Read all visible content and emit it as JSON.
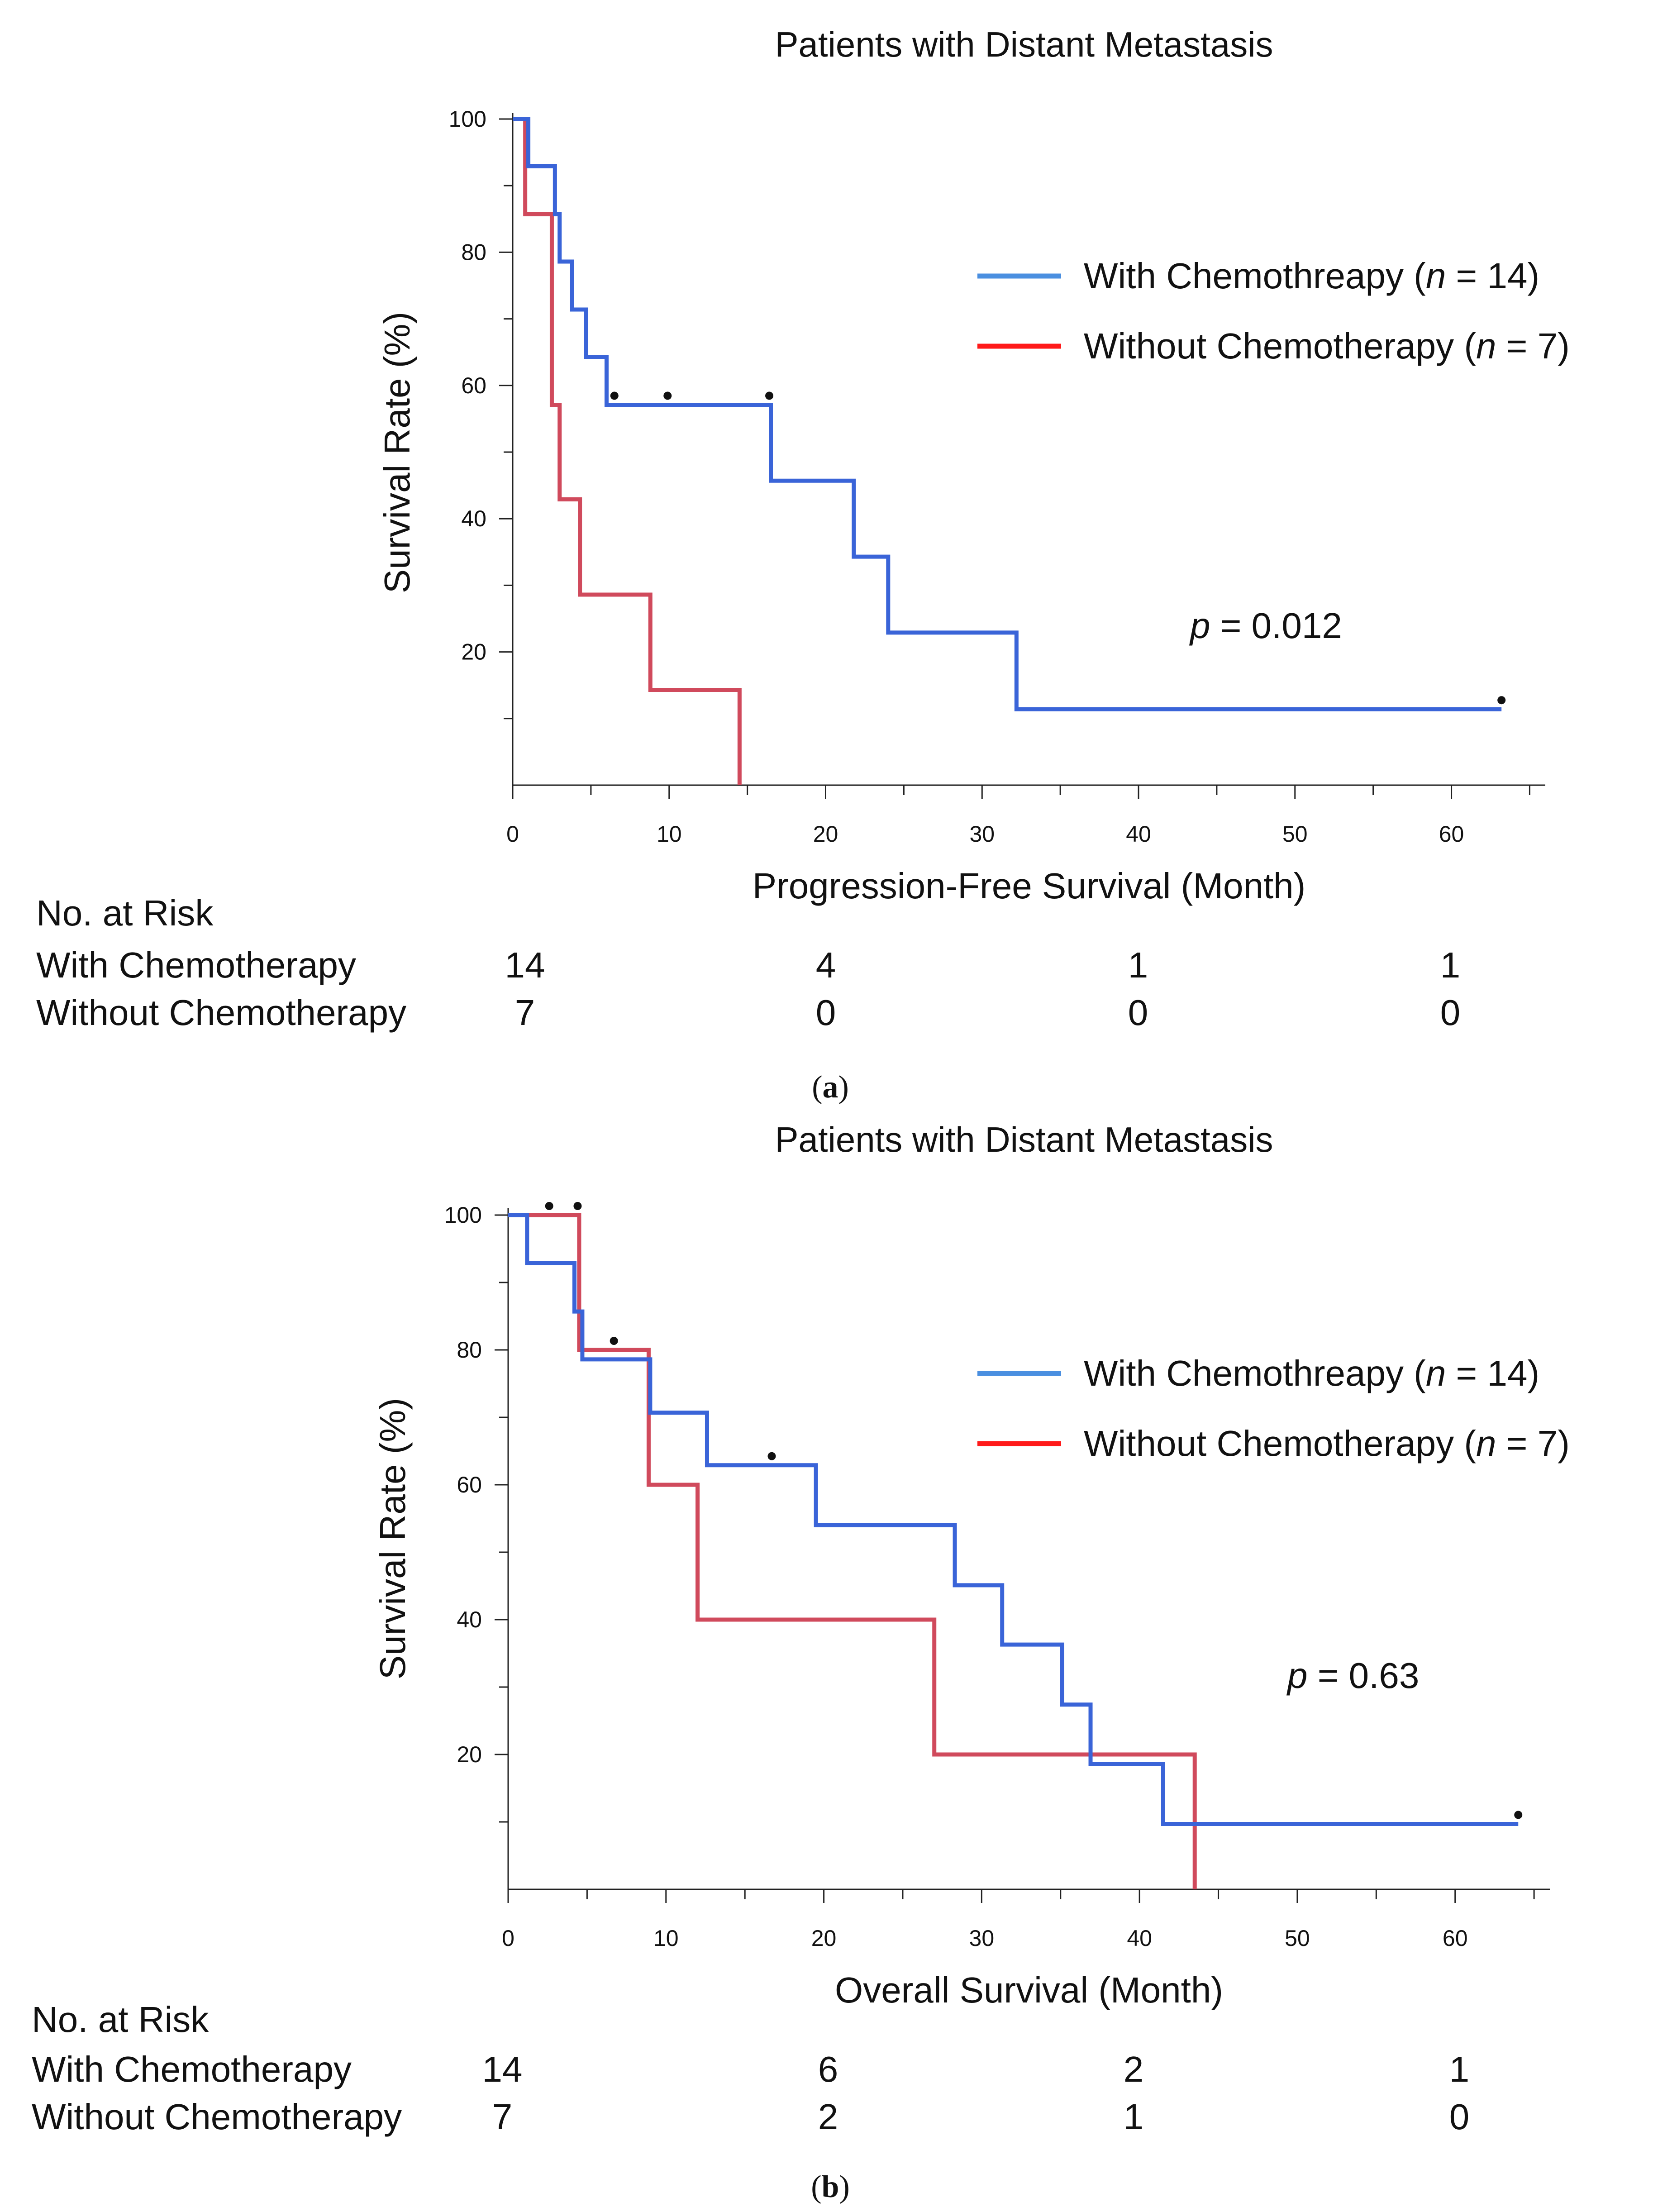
{
  "panels": [
    {
      "panel_label": "a",
      "risk_table": {
        "header": "No. at Risk",
        "rows": [
          {
            "label": "With Chemotherapy",
            "counts": [
              "14",
              "4",
              "1",
              "1"
            ]
          },
          {
            "label": "Without Chemotherapy",
            "counts": [
              "7",
              "0",
              "0",
              "0"
            ]
          }
        ]
      },
      "annotation": {
        "italic": "p",
        "rest": " = 0.012"
      }
    },
    {
      "panel_label": "b",
      "risk_table": {
        "header": "No. at Risk",
        "rows": [
          {
            "label": "With Chemotherapy",
            "counts": [
              "14",
              "6",
              "2",
              "1"
            ]
          },
          {
            "label": "Without Chemotherapy",
            "counts": [
              "7",
              "2",
              "1",
              "0"
            ]
          }
        ]
      },
      "annotation": {
        "italic": "p",
        "rest": " = 0.63"
      }
    }
  ],
  "chart_data": [
    {
      "type": "line",
      "subtype": "kaplan-meier step",
      "title": "Patients with Distant Metastasis",
      "xlabel": "Progression-Free Survival (Month)",
      "ylabel": "Survival Rate (%)",
      "xlim": [
        0,
        66
      ],
      "ylim": [
        0,
        100
      ],
      "x_ticks": [
        0,
        10,
        20,
        30,
        40,
        50,
        60
      ],
      "y_ticks": [
        20,
        40,
        60,
        80,
        100
      ],
      "legend_position": "right",
      "series": [
        {
          "name_main": "With Chemothreapy (",
          "name_italic": "n",
          "name_end": " = 14)",
          "color": "#3a64d8",
          "legend_color": "#4a8fe0",
          "steps": [
            [
              0,
              100
            ],
            [
              1,
              92.9
            ],
            [
              2.7,
              85.7
            ],
            [
              3,
              78.6
            ],
            [
              3.8,
              71.4
            ],
            [
              4.7,
              64.3
            ],
            [
              6,
              57.1
            ],
            [
              16.5,
              45.7
            ],
            [
              21.8,
              34.3
            ],
            [
              24,
              22.9
            ],
            [
              32.2,
              11.4
            ],
            [
              63.2,
              11.4
            ]
          ],
          "censored": [
            [
              6.5,
              57.1
            ],
            [
              9.9,
              57.1
            ],
            [
              16.4,
              57.1
            ],
            [
              63.2,
              11.4
            ]
          ]
        },
        {
          "name_main": "Without Chemotherapy (",
          "name_italic": "n",
          "name_end": " = 7)",
          "color": "#d04a5c",
          "legend_color": "#ff1a1a",
          "steps": [
            [
              0,
              100
            ],
            [
              0.8,
              85.7
            ],
            [
              2.5,
              57.1
            ],
            [
              3,
              42.9
            ],
            [
              4.3,
              28.6
            ],
            [
              8.8,
              14.3
            ],
            [
              14.5,
              0
            ]
          ],
          "censored": []
        }
      ]
    },
    {
      "type": "line",
      "subtype": "kaplan-meier step",
      "title": "Patients with Distant Metastasis",
      "xlabel": "Overall Survival (Month)",
      "ylabel": "Survival Rate (%)",
      "xlim": [
        0,
        66
      ],
      "ylim": [
        0,
        100
      ],
      "x_ticks": [
        0,
        10,
        20,
        30,
        40,
        50,
        60
      ],
      "y_ticks": [
        20,
        40,
        60,
        80,
        100
      ],
      "legend_position": "right",
      "series": [
        {
          "name_main": "With Chemothreapy (",
          "name_italic": "n",
          "name_end": " = 14)",
          "color": "#3a64d8",
          "legend_color": "#4a8fe0",
          "steps": [
            [
              0,
              100
            ],
            [
              1.2,
              92.9
            ],
            [
              4.2,
              85.7
            ],
            [
              4.7,
              78.6
            ],
            [
              9,
              70.7
            ],
            [
              12.6,
              62.9
            ],
            [
              19.5,
              54
            ],
            [
              28.3,
              45.1
            ],
            [
              31.3,
              36.3
            ],
            [
              35.1,
              27.4
            ],
            [
              36.9,
              18.6
            ],
            [
              41.5,
              9.7
            ],
            [
              64,
              9.7
            ]
          ],
          "censored": [
            [
              2.6,
              100
            ],
            [
              4.4,
              100
            ],
            [
              16.7,
              62.9
            ],
            [
              64,
              9.7
            ]
          ]
        },
        {
          "name_main": "Without Chemotherapy (",
          "name_italic": "n",
          "name_end": " = 7)",
          "color": "#d04a5c",
          "legend_color": "#ff1a1a",
          "steps": [
            [
              0,
              100
            ],
            [
              4.5,
              80
            ],
            [
              8.9,
              60
            ],
            [
              12,
              40
            ],
            [
              27,
              20
            ],
            [
              43.5,
              20
            ],
            [
              43.5,
              0
            ]
          ],
          "censored": [
            [
              6.7,
              80
            ]
          ]
        }
      ]
    }
  ]
}
